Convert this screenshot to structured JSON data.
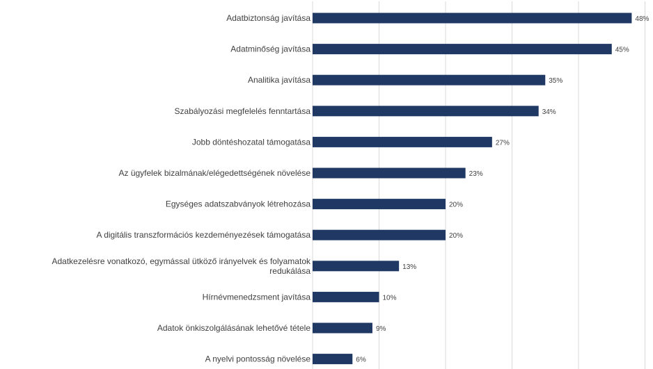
{
  "chart_data": {
    "type": "bar",
    "orientation": "horizontal",
    "categories": [
      "Adatbiztonság javítása",
      "Adatminőség javítása",
      "Analitika javítása",
      "Szabályozási megfelelés fenntartása",
      "Jobb döntéshozatal támogatása",
      "Az ügyfelek bizalmának/elégedettségének növelése",
      "Egységes adatszabványok létrehozása",
      "A digitális transzformációs kezdeményezések támogatása",
      "Adatkezelésre vonatkozó, egymással ütköző irányelvek és folyamatok redukálása",
      "Hírnévmenedzsment javítása",
      "Adatok önkiszolgálásának lehetővé tétele",
      "A nyelvi pontosság növelése"
    ],
    "values": [
      48,
      45,
      35,
      34,
      27,
      23,
      20,
      20,
      13,
      10,
      9,
      6
    ],
    "value_labels": [
      "48%",
      "45%",
      "35%",
      "34%",
      "27%",
      "23%",
      "20%",
      "20%",
      "13%",
      "10%",
      "9%",
      "6%"
    ],
    "xlim": [
      0,
      50
    ],
    "grid": true,
    "bar_color": "#1f3864"
  }
}
